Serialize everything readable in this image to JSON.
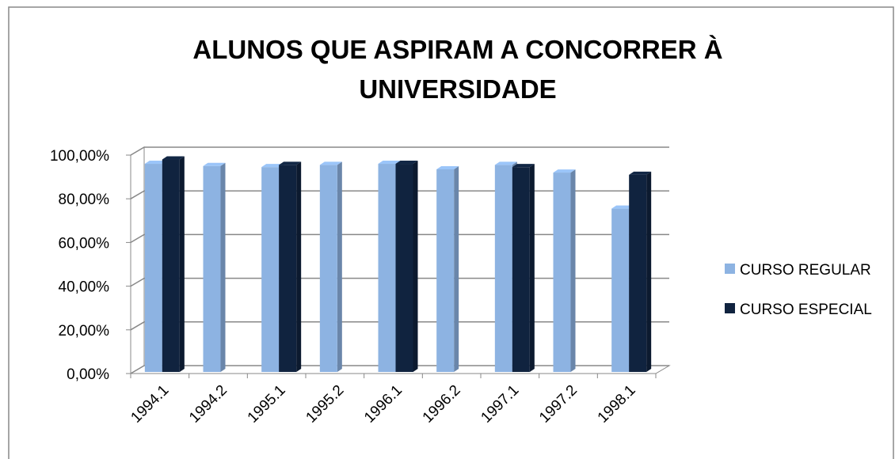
{
  "chart_data": {
    "type": "bar3d",
    "title": "ALUNOS QUE ASPIRAM A CONCORRER À UNIVERSIDADE",
    "categories": [
      "1994.1",
      "1994.2",
      "1995.1",
      "1995.2",
      "1996.1",
      "1996.2",
      "1997.1",
      "1997.2",
      "1998.1"
    ],
    "series": [
      {
        "name": "CURSO REGULAR",
        "color": "#8db3e2",
        "values": [
          96,
          95,
          94.5,
          95.5,
          96,
          93.5,
          95.5,
          92,
          75.5
        ]
      },
      {
        "name": "CURSO ESPECIAL",
        "color": "#10233f",
        "values": [
          98,
          null,
          95.5,
          null,
          96,
          null,
          94.5,
          null,
          91
        ]
      }
    ],
    "ylim": [
      0,
      100
    ],
    "yticks": [
      {
        "value": 0,
        "label": "0,00%"
      },
      {
        "value": 20,
        "label": "20,00%"
      },
      {
        "value": 40,
        "label": "40,00%"
      },
      {
        "value": 60,
        "label": "60,00%"
      },
      {
        "value": 80,
        "label": "80,00%"
      },
      {
        "value": 100,
        "label": "100,00%"
      }
    ],
    "grid": true,
    "legend": "right"
  }
}
